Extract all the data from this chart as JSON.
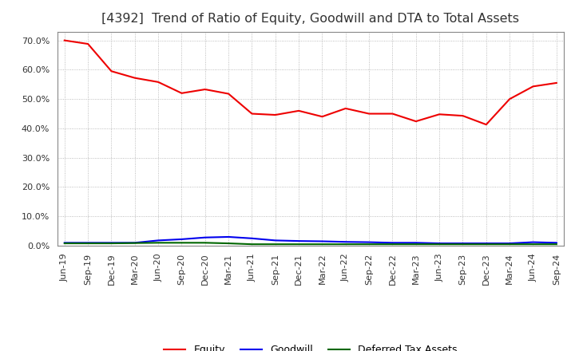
{
  "title": "[4392]  Trend of Ratio of Equity, Goodwill and DTA to Total Assets",
  "x_labels": [
    "Jun-19",
    "Sep-19",
    "Dec-19",
    "Mar-20",
    "Jun-20",
    "Sep-20",
    "Dec-20",
    "Mar-21",
    "Jun-21",
    "Sep-21",
    "Dec-21",
    "Mar-22",
    "Jun-22",
    "Sep-22",
    "Dec-22",
    "Mar-23",
    "Jun-23",
    "Sep-23",
    "Dec-23",
    "Mar-24",
    "Jun-24",
    "Sep-24"
  ],
  "equity": [
    0.7,
    0.688,
    0.595,
    0.572,
    0.558,
    0.52,
    0.533,
    0.518,
    0.45,
    0.446,
    0.46,
    0.44,
    0.468,
    0.45,
    0.45,
    0.424,
    0.448,
    0.443,
    0.413,
    0.5,
    0.543,
    0.555
  ],
  "goodwill": [
    0.01,
    0.01,
    0.01,
    0.01,
    0.018,
    0.022,
    0.028,
    0.03,
    0.025,
    0.018,
    0.016,
    0.015,
    0.013,
    0.012,
    0.01,
    0.01,
    0.008,
    0.008,
    0.008,
    0.008,
    0.012,
    0.01
  ],
  "dta": [
    0.008,
    0.008,
    0.008,
    0.009,
    0.01,
    0.01,
    0.01,
    0.008,
    0.005,
    0.005,
    0.005,
    0.005,
    0.005,
    0.005,
    0.005,
    0.005,
    0.005,
    0.005,
    0.005,
    0.005,
    0.005,
    0.005
  ],
  "equity_color": "#EE0000",
  "goodwill_color": "#0000EE",
  "dta_color": "#006600",
  "ylim": [
    0.0,
    0.73
  ],
  "yticks": [
    0.0,
    0.1,
    0.2,
    0.3,
    0.4,
    0.5,
    0.6,
    0.7
  ],
  "background_color": "#FFFFFF",
  "plot_bg_color": "#FFFFFF",
  "grid_color": "#AAAAAA",
  "title_fontsize": 11.5,
  "title_color": "#333333",
  "tick_fontsize": 8,
  "legend_labels": [
    "Equity",
    "Goodwill",
    "Deferred Tax Assets"
  ]
}
